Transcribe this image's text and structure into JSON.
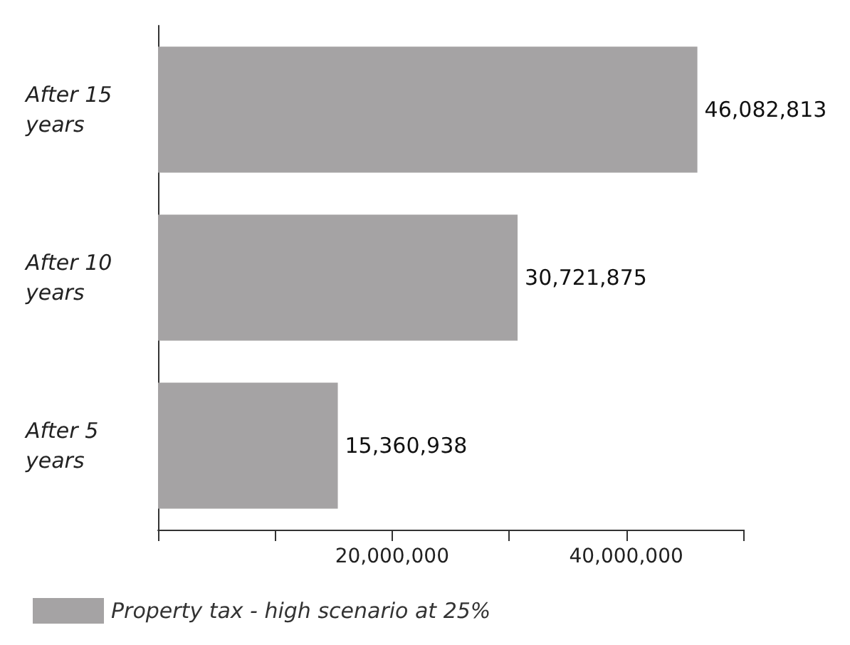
{
  "chart_data": {
    "type": "bar",
    "orientation": "horizontal",
    "categories": [
      "After 15 years",
      "After 10 years",
      "After 5 years"
    ],
    "series": [
      {
        "name": "Property tax - high scenario at 25%",
        "color": "#a5a3a4",
        "values": [
          46082813,
          30721875,
          15360938
        ],
        "value_labels": [
          "46,082,813",
          "30,721,875",
          "15,360,938"
        ]
      }
    ],
    "xlim": [
      0,
      50000000
    ],
    "xticks": [
      {
        "value": 0,
        "label": null
      },
      {
        "value": 10000000,
        "label": null
      },
      {
        "value": 20000000,
        "label": "20,000,000"
      },
      {
        "value": 30000000,
        "label": null
      },
      {
        "value": 40000000,
        "label": "40,000,000"
      },
      {
        "value": 50000000,
        "label": null
      }
    ],
    "grid": false,
    "legend": "bottom left"
  }
}
